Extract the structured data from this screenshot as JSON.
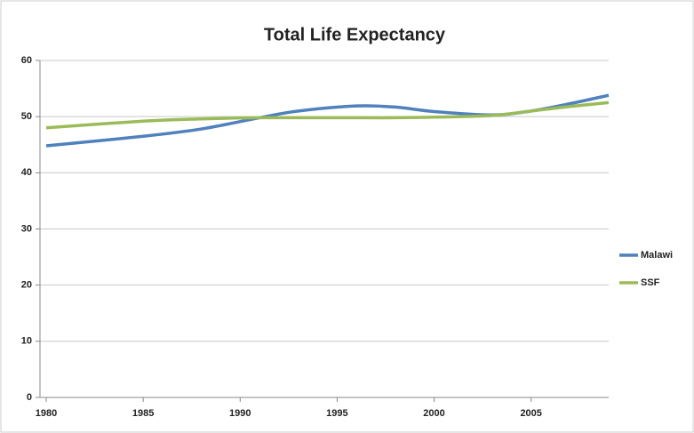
{
  "chart_data": {
    "type": "line",
    "title": "Total Life Expectancy",
    "x": [
      1980,
      1985,
      1988,
      1991,
      1993,
      1996,
      1998,
      2000,
      2003,
      2005,
      2007,
      2009
    ],
    "series": [
      {
        "name": "Malawi",
        "color": "#4f81bd",
        "values": [
          44.8,
          46.5,
          47.8,
          49.8,
          51,
          51.9,
          51.7,
          50.9,
          50.3,
          51,
          52.3,
          53.8
        ]
      },
      {
        "name": "SSF",
        "color": "#9bbb59",
        "values": [
          48,
          49.2,
          49.6,
          49.8,
          49.8,
          49.8,
          49.8,
          49.9,
          50.2,
          51,
          51.8,
          52.5
        ]
      }
    ],
    "xlim": [
      1980,
      2009
    ],
    "xticks": [
      1980,
      1985,
      1990,
      1995,
      2000,
      2005
    ],
    "ylim": [
      0,
      60
    ],
    "yticks": [
      0,
      10,
      20,
      30,
      40,
      50,
      60
    ],
    "grid": true,
    "legend": "right"
  }
}
